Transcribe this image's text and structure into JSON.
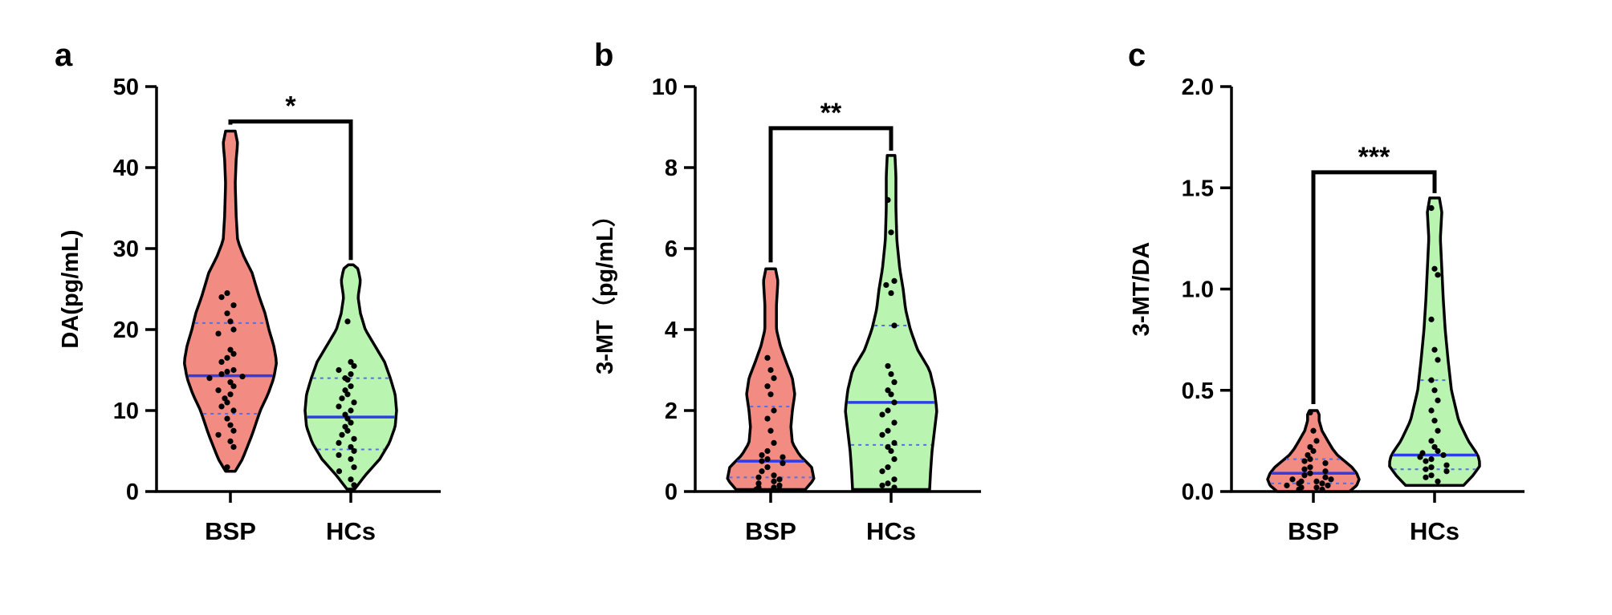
{
  "figure": {
    "colors": {
      "BSP": "#f28b82",
      "HCs": "#b9f5b0",
      "median": "#2e3de6",
      "quartile": "#5a6fe0",
      "point": "#000000"
    }
  },
  "chart_data": [
    {
      "panel": "a",
      "type": "violin",
      "ylabel": "DA(pg/mL)",
      "ylim": [
        0,
        50
      ],
      "yticks": [
        0,
        10,
        20,
        30,
        40,
        50
      ],
      "categories": [
        "BSP",
        "HCs"
      ],
      "significance": "*",
      "groups": [
        {
          "name": "BSP",
          "range": [
            2.5,
            44.5
          ],
          "median": 14.3,
          "q1": 9.6,
          "q3": 20.8,
          "profile": [
            [
              2.5,
              0.1
            ],
            [
              4,
              0.25
            ],
            [
              7,
              0.45
            ],
            [
              10,
              0.62
            ],
            [
              12,
              0.78
            ],
            [
              14,
              0.9
            ],
            [
              16,
              0.96
            ],
            [
              18,
              0.9
            ],
            [
              20,
              0.8
            ],
            [
              22,
              0.72
            ],
            [
              24,
              0.6
            ],
            [
              27,
              0.45
            ],
            [
              29,
              0.28
            ],
            [
              31,
              0.15
            ],
            [
              34,
              0.12
            ],
            [
              38,
              0.1
            ],
            [
              41,
              0.12
            ],
            [
              43,
              0.15
            ],
            [
              44.5,
              0.1
            ]
          ],
          "points": [
            24.5,
            24,
            23,
            22,
            21,
            20,
            19.5,
            17.5,
            17,
            16.5,
            16,
            15,
            14.8,
            14.5,
            14.2,
            14,
            13.5,
            13,
            12.5,
            12,
            11.5,
            11,
            10.5,
            10,
            9,
            8.2,
            7.5,
            7,
            6.2,
            5.5,
            3
          ]
        },
        {
          "name": "HCs",
          "range": [
            0.3,
            28
          ],
          "median": 9.2,
          "q1": 5.2,
          "q3": 14,
          "profile": [
            [
              0.3,
              0.08
            ],
            [
              2,
              0.3
            ],
            [
              4,
              0.6
            ],
            [
              6,
              0.8
            ],
            [
              8,
              0.92
            ],
            [
              10,
              0.95
            ],
            [
              12,
              0.92
            ],
            [
              14,
              0.82
            ],
            [
              16,
              0.7
            ],
            [
              18,
              0.5
            ],
            [
              20,
              0.3
            ],
            [
              22,
              0.2
            ],
            [
              24,
              0.15
            ],
            [
              26,
              0.2
            ],
            [
              27.5,
              0.15
            ],
            [
              28,
              0.05
            ]
          ],
          "points": [
            21,
            16,
            15.5,
            15,
            14.5,
            14,
            13.8,
            13,
            12.5,
            12,
            11.5,
            11,
            10.5,
            10,
            9.5,
            9,
            8.5,
            8,
            7.5,
            7,
            6.5,
            6,
            5.5,
            5,
            4.5,
            4,
            3,
            2.5,
            1.5,
            0.8
          ]
        }
      ]
    },
    {
      "panel": "b",
      "type": "violin",
      "ylabel": "3-MT（pg/mL）",
      "ylim": [
        0,
        10
      ],
      "yticks": [
        0,
        2,
        4,
        6,
        8,
        10
      ],
      "categories": [
        "BSP",
        "HCs"
      ],
      "significance": "**",
      "groups": [
        {
          "name": "BSP",
          "range": [
            0.05,
            5.5
          ],
          "median": 0.75,
          "q1": 0.35,
          "q3": 2.1,
          "profile": [
            [
              0.05,
              0.72
            ],
            [
              0.3,
              0.9
            ],
            [
              0.6,
              0.85
            ],
            [
              0.9,
              0.6
            ],
            [
              1.2,
              0.45
            ],
            [
              1.6,
              0.42
            ],
            [
              2,
              0.45
            ],
            [
              2.4,
              0.5
            ],
            [
              2.8,
              0.45
            ],
            [
              3.2,
              0.32
            ],
            [
              3.6,
              0.2
            ],
            [
              4,
              0.12
            ],
            [
              4.6,
              0.12
            ],
            [
              5.2,
              0.15
            ],
            [
              5.5,
              0.1
            ]
          ],
          "points": [
            3.3,
            3,
            2.8,
            2.6,
            2.4,
            2,
            1.8,
            1.5,
            1.2,
            1,
            0.9,
            0.85,
            0.8,
            0.75,
            0.7,
            0.6,
            0.5,
            0.4,
            0.35,
            0.3,
            0.25,
            0.2,
            0.15,
            0.1,
            0.1,
            0.05,
            0.05
          ]
        },
        {
          "name": "HCs",
          "range": [
            0.05,
            8.3
          ],
          "median": 2.2,
          "q1": 1.15,
          "q3": 4.1,
          "profile": [
            [
              0.05,
              0.8
            ],
            [
              0.5,
              0.82
            ],
            [
              1,
              0.85
            ],
            [
              1.5,
              0.9
            ],
            [
              2,
              0.95
            ],
            [
              2.5,
              0.9
            ],
            [
              3,
              0.8
            ],
            [
              3.5,
              0.55
            ],
            [
              4,
              0.4
            ],
            [
              4.5,
              0.3
            ],
            [
              5,
              0.25
            ],
            [
              5.5,
              0.18
            ],
            [
              6.2,
              0.12
            ],
            [
              7,
              0.1
            ],
            [
              7.8,
              0.1
            ],
            [
              8.3,
              0.08
            ]
          ],
          "points": [
            7.2,
            6.4,
            5.2,
            5.1,
            4.9,
            4.1,
            3.1,
            2.9,
            2.7,
            2.5,
            2.4,
            2.2,
            2,
            1.9,
            1.7,
            1.5,
            1.4,
            1.2,
            1.1,
            1,
            0.8,
            0.6,
            0.5,
            0.3,
            0.2,
            0.15,
            0.1
          ]
        }
      ]
    },
    {
      "panel": "c",
      "type": "violin",
      "ylabel": "3-MT/DA",
      "ylim": [
        0,
        2.0
      ],
      "yticks": [
        0.0,
        0.5,
        1.0,
        1.5,
        2.0
      ],
      "categories": [
        "BSP",
        "HCs"
      ],
      "significance": "***",
      "groups": [
        {
          "name": "BSP",
          "range": [
            0.0,
            0.4
          ],
          "median": 0.09,
          "q1": 0.04,
          "q3": 0.16,
          "profile": [
            [
              0,
              0.75
            ],
            [
              0.03,
              0.9
            ],
            [
              0.06,
              0.95
            ],
            [
              0.09,
              0.9
            ],
            [
              0.12,
              0.8
            ],
            [
              0.15,
              0.65
            ],
            [
              0.18,
              0.5
            ],
            [
              0.21,
              0.4
            ],
            [
              0.25,
              0.3
            ],
            [
              0.3,
              0.18
            ],
            [
              0.35,
              0.12
            ],
            [
              0.38,
              0.12
            ],
            [
              0.4,
              0.08
            ]
          ],
          "points": [
            0.39,
            0.3,
            0.25,
            0.22,
            0.2,
            0.18,
            0.16,
            0.15,
            0.14,
            0.12,
            0.11,
            0.1,
            0.09,
            0.08,
            0.07,
            0.06,
            0.06,
            0.05,
            0.05,
            0.04,
            0.04,
            0.03,
            0.03,
            0.02,
            0.02,
            0.01,
            0.01
          ]
        },
        {
          "name": "HCs",
          "range": [
            0.03,
            1.45
          ],
          "median": 0.18,
          "q1": 0.11,
          "q3": 0.55,
          "profile": [
            [
              0.03,
              0.6
            ],
            [
              0.08,
              0.8
            ],
            [
              0.13,
              0.95
            ],
            [
              0.18,
              0.9
            ],
            [
              0.25,
              0.7
            ],
            [
              0.35,
              0.5
            ],
            [
              0.5,
              0.35
            ],
            [
              0.65,
              0.28
            ],
            [
              0.8,
              0.22
            ],
            [
              0.95,
              0.18
            ],
            [
              1.1,
              0.15
            ],
            [
              1.25,
              0.12
            ],
            [
              1.38,
              0.15
            ],
            [
              1.45,
              0.1
            ]
          ],
          "points": [
            1.4,
            1.1,
            1.07,
            0.85,
            0.7,
            0.65,
            0.55,
            0.5,
            0.45,
            0.4,
            0.35,
            0.3,
            0.25,
            0.22,
            0.2,
            0.19,
            0.18,
            0.17,
            0.16,
            0.15,
            0.13,
            0.12,
            0.11,
            0.1,
            0.08,
            0.07,
            0.05
          ]
        }
      ]
    }
  ]
}
